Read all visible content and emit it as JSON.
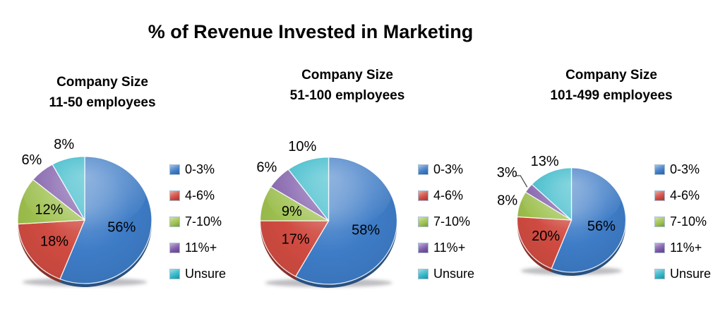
{
  "title": "% of Revenue Invested in Marketing",
  "legend_labels": [
    "0-3%",
    "4-6%",
    "7-10%",
    "11%+",
    "Unsure"
  ],
  "palette": {
    "blue_0_3": "#3E7CC7",
    "red_4_6": "#D04B41",
    "green_7_10": "#9EC14E",
    "purple_11_plus": "#7C58A8",
    "teal_unsure": "#2EB6C7"
  },
  "chart_data": [
    {
      "type": "pie",
      "group_title": "Company Size",
      "group_subtitle": "11-50 employees",
      "categories": [
        "0-3%",
        "4-6%",
        "7-10%",
        "11%+",
        "Unsure"
      ],
      "values": [
        56,
        18,
        12,
        6,
        8
      ],
      "data_labels": [
        "56%",
        "18%",
        "12%",
        "6%",
        "8%"
      ],
      "label_placement": [
        "inside",
        "inside",
        "inside",
        "outside",
        "outside"
      ],
      "colors": [
        "#3E7CC7",
        "#D04B41",
        "#9EC14E",
        "#7C58A8",
        "#2EB6C7"
      ],
      "legend": [
        "0-3%",
        "4-6%",
        "7-10%",
        "11%+",
        "Unsure"
      ],
      "legend_position": "right",
      "start_angle": "12-oclock",
      "direction": "clockwise"
    },
    {
      "type": "pie",
      "group_title": "Company Size",
      "group_subtitle": "51-100 employees",
      "categories": [
        "0-3%",
        "4-6%",
        "7-10%",
        "11%+",
        "Unsure"
      ],
      "values": [
        58,
        17,
        9,
        6,
        10
      ],
      "data_labels": [
        "58%",
        "17%",
        "9%",
        "6%",
        "10%"
      ],
      "label_placement": [
        "inside",
        "inside",
        "inside",
        "outside",
        "outside"
      ],
      "colors": [
        "#3E7CC7",
        "#D04B41",
        "#9EC14E",
        "#7C58A8",
        "#2EB6C7"
      ],
      "legend": [
        "0-3%",
        "4-6%",
        "7-10%",
        "11%+",
        "Unsure"
      ],
      "legend_position": "right",
      "start_angle": "12-oclock",
      "direction": "clockwise"
    },
    {
      "type": "pie",
      "group_title": "Company Size",
      "group_subtitle": "101-499 employees",
      "categories": [
        "0-3%",
        "4-6%",
        "7-10%",
        "11%+",
        "Unsure"
      ],
      "values": [
        56,
        20,
        8,
        3,
        13
      ],
      "data_labels": [
        "56%",
        "20%",
        "8%",
        "3%",
        "13%"
      ],
      "label_placement": [
        "inside",
        "inside",
        "outside",
        "callout",
        "outside"
      ],
      "colors": [
        "#3E7CC7",
        "#D04B41",
        "#9EC14E",
        "#7C58A8",
        "#2EB6C7"
      ],
      "legend": [
        "0-3%",
        "4-6%",
        "7-10%",
        "11%+",
        "Unsure"
      ],
      "legend_position": "right",
      "start_angle": "12-oclock",
      "direction": "clockwise"
    }
  ]
}
